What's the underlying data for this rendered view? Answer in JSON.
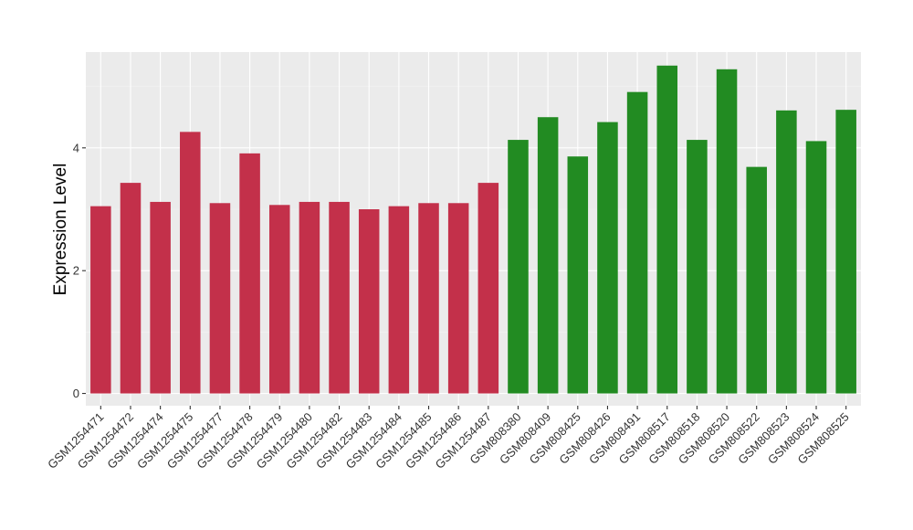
{
  "chart_data": {
    "type": "bar",
    "title": "",
    "xlabel": "",
    "ylabel": "Expression Level",
    "ylim": [
      -0.2,
      5.56
    ],
    "yticks": [
      0,
      2,
      4
    ],
    "grid": true,
    "legend": "none",
    "categories": [
      "GSM1254471",
      "GSM1254472",
      "GSM1254474",
      "GSM1254475",
      "GSM1254477",
      "GSM1254478",
      "GSM1254479",
      "GSM1254480",
      "GSM1254482",
      "GSM1254483",
      "GSM1254484",
      "GSM1254485",
      "GSM1254486",
      "GSM1254487",
      "GSM808380",
      "GSM808409",
      "GSM808425",
      "GSM808426",
      "GSM808491",
      "GSM808517",
      "GSM808518",
      "GSM808520",
      "GSM808522",
      "GSM808523",
      "GSM808524",
      "GSM808525"
    ],
    "values": [
      3.05,
      3.43,
      3.12,
      4.26,
      3.1,
      3.91,
      3.07,
      3.12,
      3.12,
      3.0,
      3.05,
      3.1,
      3.1,
      3.43,
      4.13,
      4.5,
      3.86,
      4.42,
      4.91,
      5.34,
      4.13,
      5.28,
      3.69,
      4.61,
      4.11,
      4.62
    ],
    "group": [
      "red",
      "red",
      "red",
      "red",
      "red",
      "red",
      "red",
      "red",
      "red",
      "red",
      "red",
      "red",
      "red",
      "red",
      "green",
      "green",
      "green",
      "green",
      "green",
      "green",
      "green",
      "green",
      "green",
      "green",
      "green",
      "green"
    ]
  },
  "colors": {
    "red": "#c3304a",
    "green": "#228b22",
    "panel": "#ebebeb",
    "grid_major": "#ffffff",
    "grid_minor": "#f4f4f4",
    "text": "#333333"
  }
}
